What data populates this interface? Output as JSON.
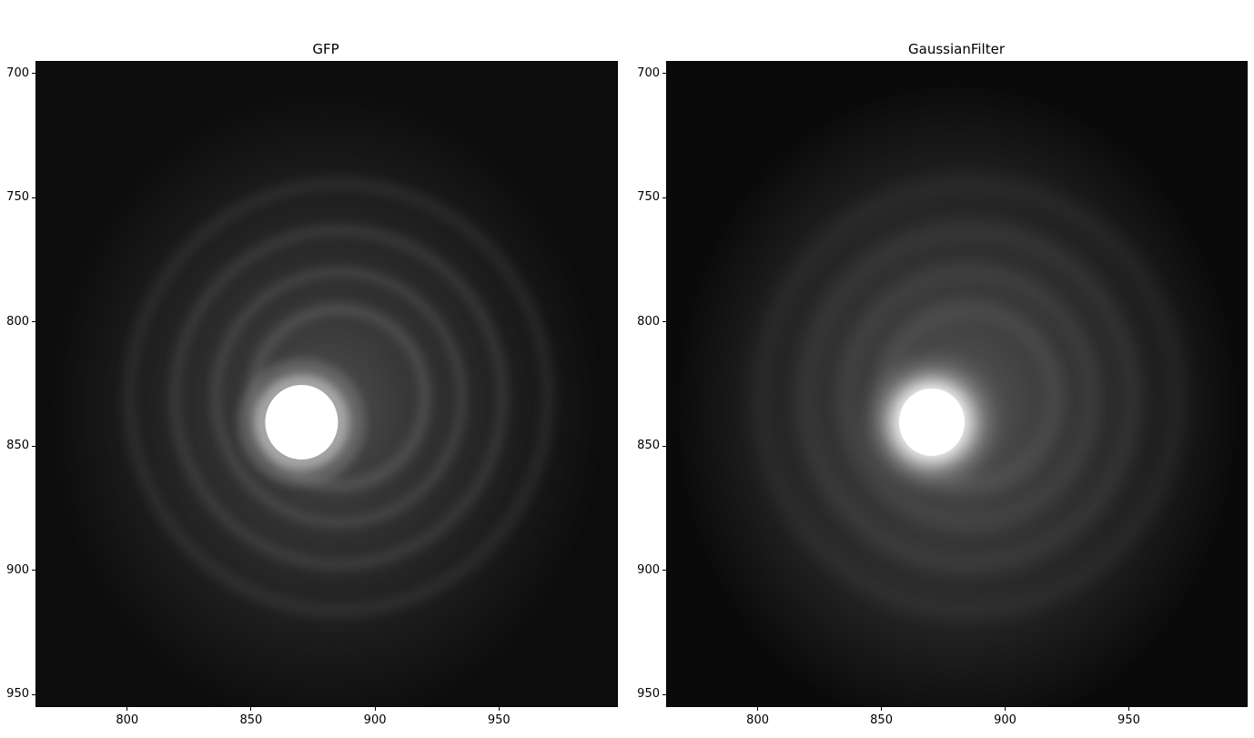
{
  "figure": {
    "panels": [
      {
        "title": "GFP",
        "smooth": false,
        "xticks": [
          "800",
          "850",
          "900",
          "950"
        ],
        "yticks": [
          "700",
          "750",
          "800",
          "850",
          "900",
          "950"
        ],
        "xlim": [
          763,
          998
        ],
        "ylim": [
          955,
          695
        ],
        "bright_spot_center": [
          870,
          840
        ]
      },
      {
        "title": "GaussianFilter",
        "smooth": true,
        "xticks": [
          "800",
          "850",
          "900",
          "950"
        ],
        "yticks": [
          "700",
          "750",
          "800",
          "850",
          "900",
          "950"
        ],
        "xlim": [
          763,
          998
        ],
        "ylim": [
          955,
          695
        ],
        "bright_spot_center": [
          870,
          840
        ]
      }
    ]
  }
}
